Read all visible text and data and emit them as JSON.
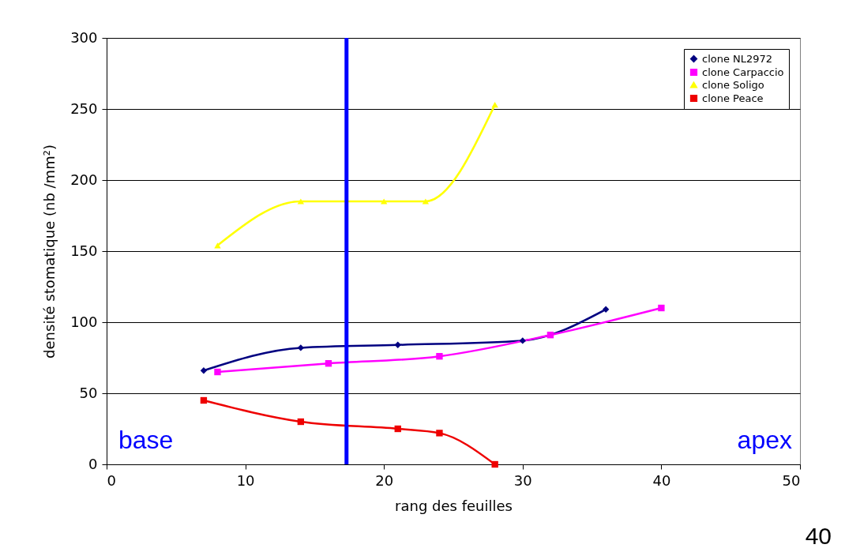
{
  "chart_data": {
    "type": "line",
    "xlabel": "rang des feuilles",
    "ylabel": "densité stomatique (nb /mm²)",
    "xlim": [
      0,
      50
    ],
    "xticks": [
      0,
      10,
      20,
      30,
      40,
      50
    ],
    "ylim": [
      0,
      300
    ],
    "yticks": [
      0,
      50,
      100,
      150,
      200,
      250,
      300
    ],
    "grid": "y",
    "legend": "top right",
    "series": [
      {
        "name": "clone NL2972",
        "color": "#000080",
        "marker": "diamond",
        "x": [
          7,
          14,
          21,
          30,
          36
        ],
        "values": [
          66,
          82,
          84,
          87,
          109
        ]
      },
      {
        "name": "clone Carpaccio",
        "color": "#ff00ff",
        "marker": "square",
        "x": [
          8,
          16,
          24,
          32,
          40
        ],
        "values": [
          65,
          71,
          76,
          91,
          110
        ]
      },
      {
        "name": "clone Soligo",
        "color": "#ffff00",
        "marker": "triangle",
        "x": [
          8,
          14,
          20,
          23,
          28
        ],
        "values": [
          154,
          185,
          185,
          185,
          253
        ]
      },
      {
        "name": "clone Peace",
        "color": "#ee0000",
        "marker": "square",
        "x": [
          7,
          14,
          21,
          24,
          28
        ],
        "values": [
          45,
          30,
          25,
          22,
          0
        ]
      }
    ],
    "ref_lines": [
      {
        "axis": "x",
        "value": 17.3,
        "color": "#0000ff"
      }
    ],
    "annotations": [
      "base",
      "apex",
      "40"
    ]
  }
}
